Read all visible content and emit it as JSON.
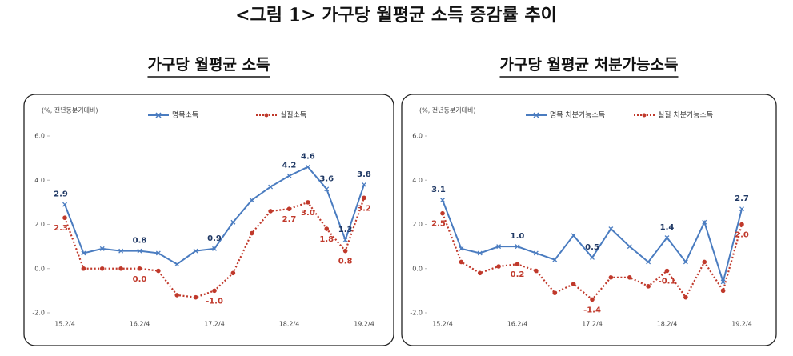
{
  "title": "<그림 1> 가구당 월평균 소득 증감률 추이",
  "chart_data": [
    {
      "type": "line",
      "title": "가구당 월평균 소득",
      "y_label": "(%, 전년동분기대비)",
      "categories": [
        "15.2/4",
        null,
        null,
        null,
        "16.2/4",
        null,
        null,
        null,
        "17.2/4",
        null,
        null,
        null,
        "18.2/4",
        null,
        null,
        null,
        "19.2/4"
      ],
      "ylim": [
        -2,
        6
      ],
      "yticks": [
        {
          "value": -2,
          "label": "-2.0"
        },
        {
          "value": 0,
          "label": "0.0"
        },
        {
          "value": 2,
          "label": "2.0"
        },
        {
          "value": 4,
          "label": "4.0"
        },
        {
          "value": 6,
          "label": "6.0"
        }
      ],
      "grid": false,
      "series": [
        {
          "name": "명목소득",
          "color": "#4a7cc0",
          "style": "solid",
          "label_color": "#1f3864",
          "values": [
            2.9,
            0.7,
            0.9,
            0.8,
            0.8,
            0.7,
            0.2,
            0.8,
            0.9,
            2.1,
            3.1,
            3.7,
            4.2,
            4.6,
            3.6,
            1.3,
            3.8
          ],
          "value_labels": [
            "2.9",
            null,
            null,
            null,
            "0.8",
            null,
            null,
            null,
            "0.9",
            null,
            null,
            null,
            "4.2",
            "4.6",
            "3.6",
            "1.3",
            "3.8"
          ]
        },
        {
          "name": "실질소득",
          "color": "#c0392b",
          "style": "dotted",
          "label_color": "#c0392b",
          "values": [
            2.3,
            0.0,
            0.0,
            0.0,
            0.0,
            -0.1,
            -1.2,
            -1.3,
            -1.0,
            -0.2,
            1.6,
            2.6,
            2.7,
            3.0,
            1.8,
            0.8,
            3.2
          ],
          "value_labels": [
            "2.3",
            null,
            null,
            null,
            "0.0",
            null,
            null,
            null,
            "-1.0",
            null,
            null,
            null,
            "2.7",
            "3.0",
            "1.8",
            "0.8",
            "3.2"
          ]
        }
      ]
    },
    {
      "type": "line",
      "title": "가구당 월평균 처분가능소득",
      "y_label": "(%, 전년동분기대비)",
      "categories": [
        "15.2/4",
        null,
        null,
        null,
        "16.2/4",
        null,
        null,
        null,
        "17.2/4",
        null,
        null,
        null,
        "18.2/4",
        null,
        null,
        null,
        "19.2/4"
      ],
      "ylim": [
        -2,
        6
      ],
      "yticks": [
        {
          "value": -2,
          "label": "-2.0"
        },
        {
          "value": 0,
          "label": "0.0"
        },
        {
          "value": 2,
          "label": "2.0"
        },
        {
          "value": 4,
          "label": "4.0"
        },
        {
          "value": 6,
          "label": "6.0"
        }
      ],
      "grid": false,
      "series": [
        {
          "name": "명목 처분가능소득",
          "color": "#4a7cc0",
          "style": "solid",
          "label_color": "#1f3864",
          "values": [
            3.1,
            0.9,
            0.7,
            1.0,
            1.0,
            0.7,
            0.4,
            1.5,
            0.5,
            1.8,
            1.0,
            0.3,
            1.4,
            0.3,
            2.1,
            -0.6,
            2.7
          ],
          "value_labels": [
            "3.1",
            null,
            null,
            null,
            "1.0",
            null,
            null,
            null,
            "0.5",
            null,
            null,
            null,
            "1.4",
            null,
            null,
            null,
            "2.7"
          ]
        },
        {
          "name": "실질 처분가능소득",
          "color": "#c0392b",
          "style": "dotted",
          "label_color": "#c0392b",
          "values": [
            2.5,
            0.3,
            -0.2,
            0.1,
            0.2,
            -0.1,
            -1.1,
            -0.7,
            -1.4,
            -0.4,
            -0.4,
            -0.8,
            -0.1,
            -1.3,
            0.3,
            -1.0,
            2.0
          ],
          "value_labels": [
            "2.5",
            null,
            null,
            null,
            "0.2",
            null,
            null,
            null,
            "-1.4",
            null,
            null,
            null,
            "-0.1",
            null,
            null,
            null,
            "2.0"
          ]
        }
      ]
    }
  ]
}
